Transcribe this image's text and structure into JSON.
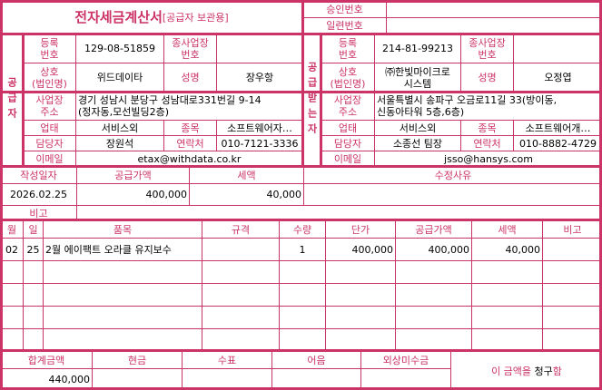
{
  "title": {
    "main": "전자세금계산서",
    "sub": "[공급자 보관용]"
  },
  "approval": {
    "approval_label": "승인번호",
    "approval_value": "",
    "serial_label": "일련번호",
    "serial_value": ""
  },
  "supplier": {
    "section_label": "공급자",
    "reg_no_label": "등록\n번호",
    "reg_no": "129-08-51859",
    "sub_biz_label": "종사업장\n번호",
    "sub_biz": "",
    "company_label": "상호\n(법인명)",
    "company": "위드데이타",
    "name_label": "성명",
    "name": "장우항",
    "address_label": "사업장\n주소",
    "address": "경기 성남시 분당구 성남대로331번길 9-14\n(정자동,모선빌딩2층)",
    "biz_type_label": "업태",
    "biz_type": "서비스외",
    "biz_item_label": "종목",
    "biz_item": "소프트웨어자…",
    "contact_label": "담당자",
    "contact": "장원석",
    "phone_label": "연락처",
    "phone": "010-7121-3336",
    "email_label": "이메일",
    "email": "etax@withdata.co.kr"
  },
  "recipient": {
    "section_label": "공급받는자",
    "reg_no_label": "등록\n번호",
    "reg_no": "214-81-99213",
    "sub_biz_label": "종사업장\n번호",
    "sub_biz": "",
    "company_label": "상호\n(법인명)",
    "company": "㈜한빛마이크로\n시스템",
    "name_label": "성명",
    "name": "오정엽",
    "address_label": "사업장\n주소",
    "address": "서울특별시 송파구 오금로11길 33(방이동,\n신동아타워 5층,6층)",
    "biz_type_label": "업태",
    "biz_type": "서비스외",
    "biz_item_label": "종목",
    "biz_item": "소프트웨어개…",
    "contact_label": "담당자",
    "contact": "소종선 팀장",
    "phone_label": "연락처",
    "phone": "010-8882-4729",
    "email_label": "이메일",
    "email": "jsso@hansys.com"
  },
  "summary": {
    "date_label": "작성일자",
    "date": "2026.02.25",
    "supply_label": "공급가액",
    "supply": "400,000",
    "tax_label": "세액",
    "tax": "40,000",
    "reason_label": "수정사유",
    "reason": "",
    "note_label": "비고",
    "note": ""
  },
  "items": {
    "headers": [
      "월",
      "일",
      "품목",
      "규격",
      "수량",
      "단가",
      "공급가액",
      "세액",
      "비고"
    ],
    "rows": [
      [
        "02",
        "25",
        "2월 에이팩트 오라클 유지보수",
        "",
        "1",
        "400,000",
        "400,000",
        "40,000",
        ""
      ],
      [
        "",
        "",
        "",
        "",
        "",
        "",
        "",
        "",
        ""
      ],
      [
        "",
        "",
        "",
        "",
        "",
        "",
        "",
        "",
        ""
      ],
      [
        "",
        "",
        "",
        "",
        "",
        "",
        "",
        "",
        ""
      ],
      [
        "",
        "",
        "",
        "",
        "",
        "",
        "",
        "",
        ""
      ]
    ]
  },
  "totals": {
    "headers": [
      "합계금액",
      "현금",
      "수표",
      "어음",
      "외상미수금"
    ],
    "values": [
      "440,000",
      "",
      "",
      "",
      ""
    ],
    "claim_prefix": "이 금액을 ",
    "claim_word": "청구",
    "claim_suffix": "함"
  },
  "colors": {
    "accent": "#cc3366"
  }
}
